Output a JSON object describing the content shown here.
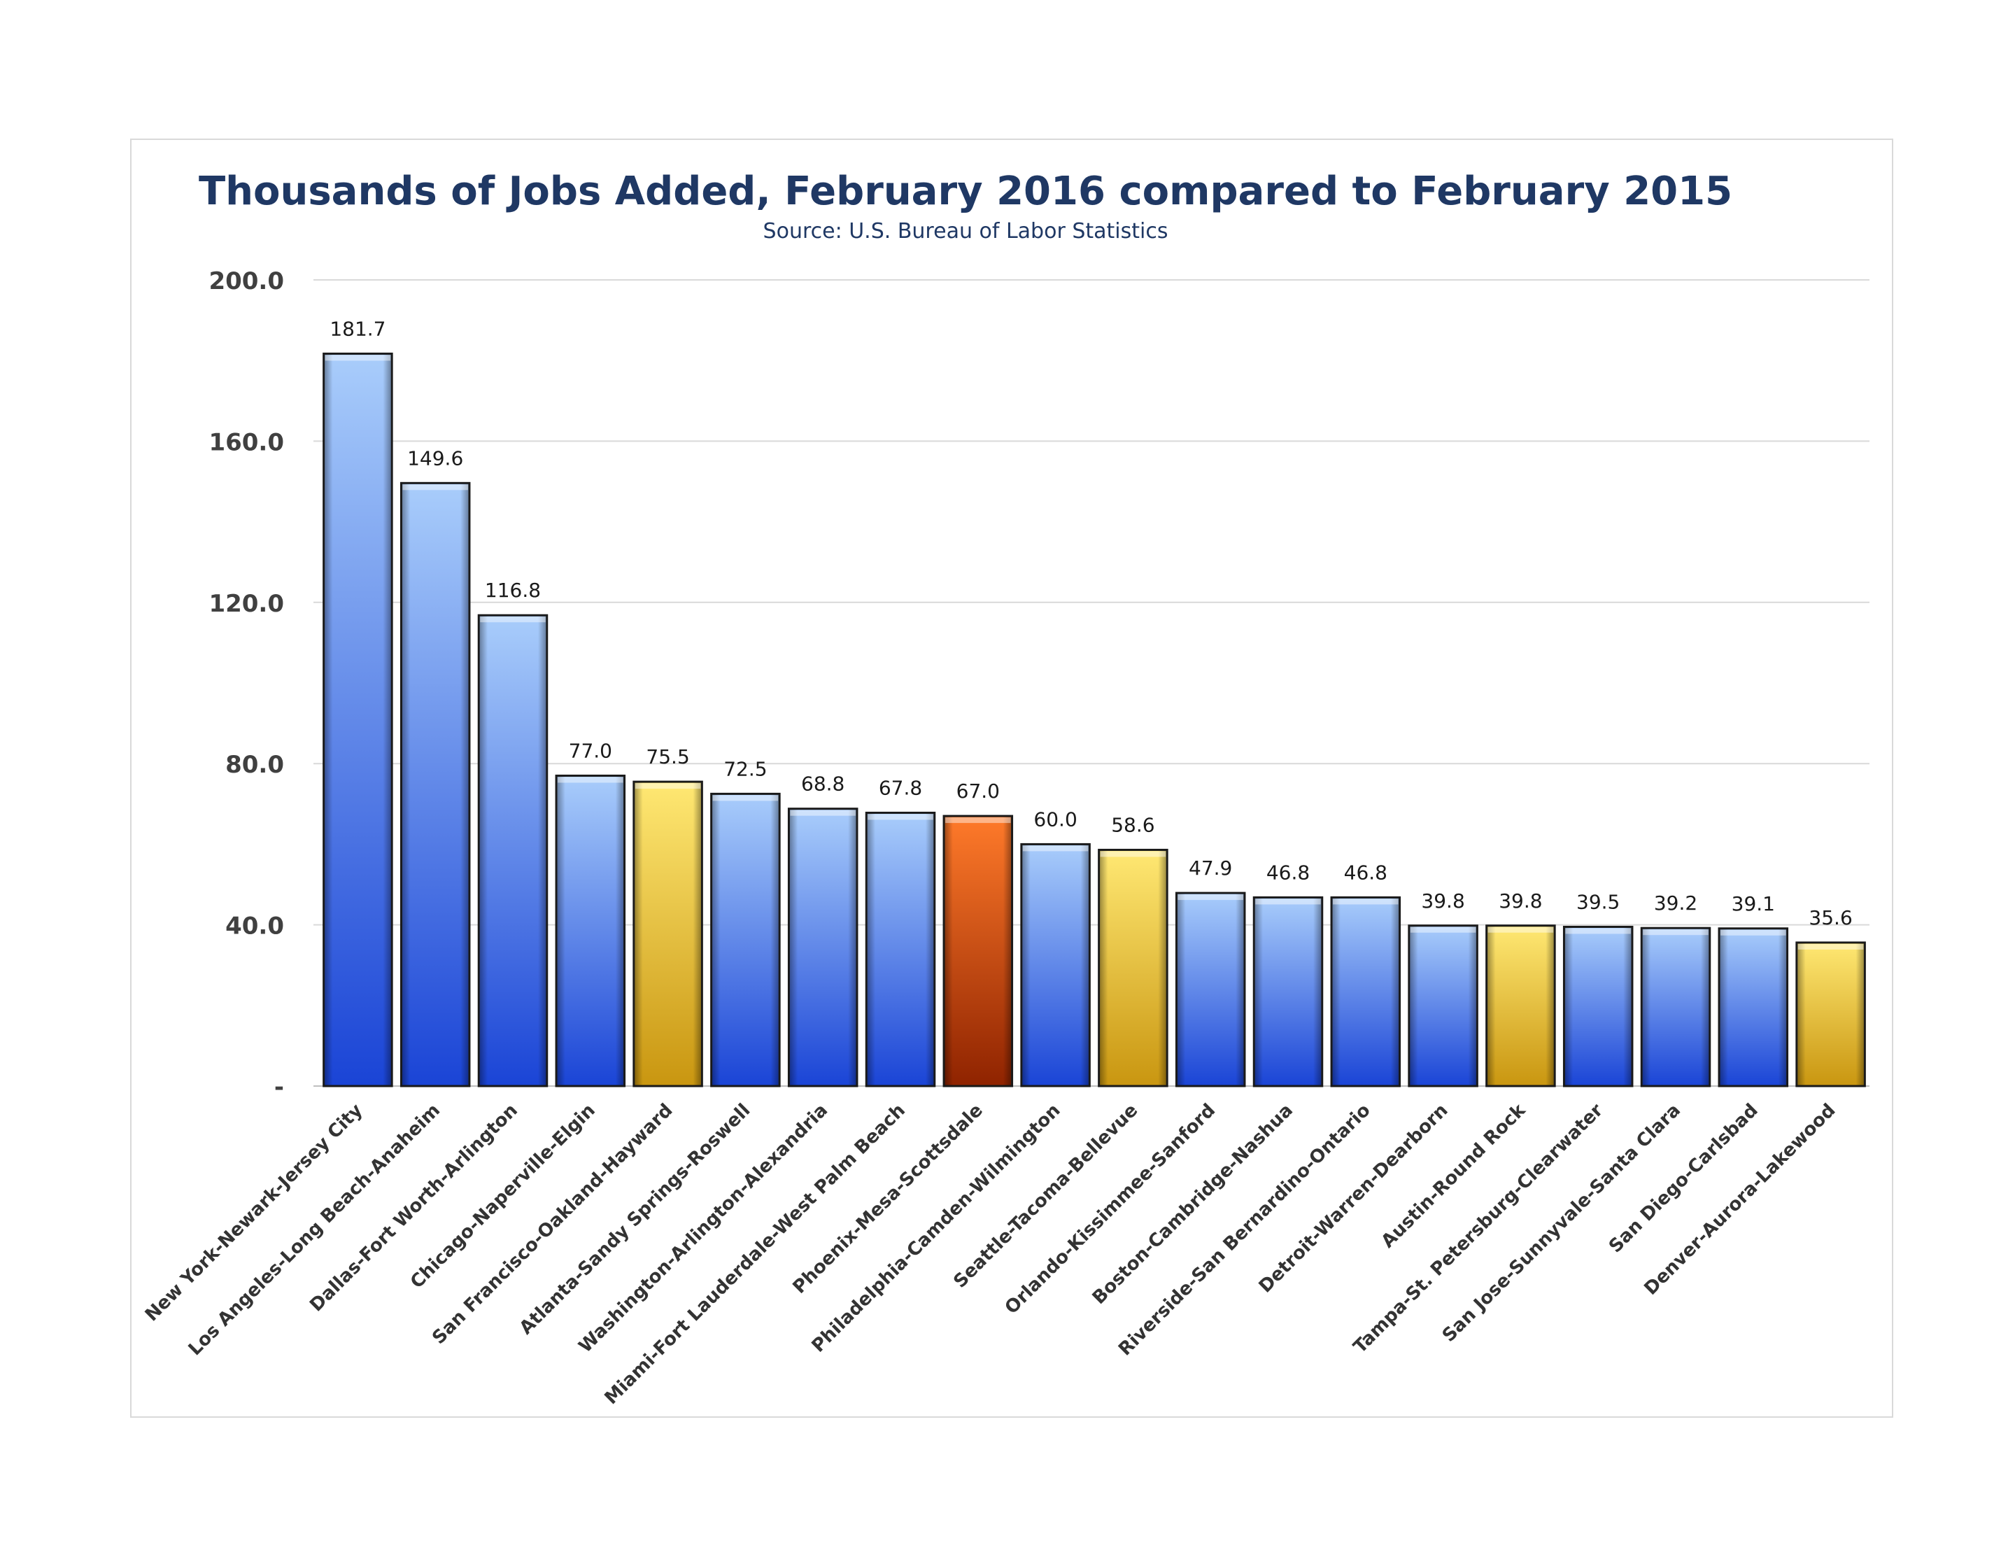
{
  "chart_data": {
    "type": "bar",
    "title": "Thousands of Jobs Added, February 2016 compared to February 2015",
    "subtitle": "Source: U.S. Bureau of Labor Statistics",
    "ylim": [
      0,
      200
    ],
    "yticks": [
      0,
      40,
      80,
      120,
      160,
      200
    ],
    "ytick_labels": [
      "-",
      "40.0",
      "80.0",
      "120.0",
      "160.0",
      "200.0"
    ],
    "grid": true,
    "categories": [
      "New York-Newark-Jersey City",
      "Los Angeles-Long Beach-Anaheim",
      "Dallas-Fort Worth-Arlington",
      "Chicago-Naperville-Elgin",
      "San Francisco-Oakland-Hayward",
      "Atlanta-Sandy Springs-Roswell",
      "Washington-Arlington-Alexandria",
      "Miami-Fort Lauderdale-West Palm Beach",
      "Phoenix-Mesa-Scottsdale",
      "Philadelphia-Camden-Wilmington",
      "Seattle-Tacoma-Bellevue",
      "Orlando-Kissimmee-Sanford",
      "Boston-Cambridge-Nashua",
      "Riverside-San Bernardino-Ontario",
      "Detroit-Warren-Dearborn",
      "Austin-Round Rock",
      "Tampa-St. Petersburg-Clearwater",
      "San Jose-Sunnyvale-Santa Clara",
      "San Diego-Carlsbad",
      "Denver-Aurora-Lakewood"
    ],
    "values": [
      181.7,
      149.6,
      116.8,
      77.0,
      75.5,
      72.5,
      68.8,
      67.8,
      67.0,
      60.0,
      58.6,
      47.9,
      46.8,
      46.8,
      39.8,
      39.8,
      39.5,
      39.2,
      39.1,
      35.6
    ],
    "value_labels": [
      "181.7",
      "149.6",
      "116.8",
      "77.0",
      "75.5",
      "72.5",
      "68.8",
      "67.8",
      "67.0",
      "60.0",
      "58.6",
      "47.9",
      "46.8",
      "46.8",
      "39.8",
      "39.8",
      "39.5",
      "39.2",
      "39.1",
      "35.6"
    ],
    "bar_colors": [
      "blue",
      "blue",
      "blue",
      "blue",
      "gold",
      "blue",
      "blue",
      "blue",
      "orange",
      "blue",
      "gold",
      "blue",
      "blue",
      "blue",
      "blue",
      "gold",
      "blue",
      "blue",
      "blue",
      "gold"
    ],
    "color_palette": {
      "blue": [
        "#a9cdfb",
        "#1a44d6"
      ],
      "gold": [
        "#ffe873",
        "#c99610"
      ],
      "orange": [
        "#ff7a2a",
        "#8f2300"
      ]
    },
    "title_color": "#1f3864",
    "grid_color": "#d9d9d9"
  }
}
